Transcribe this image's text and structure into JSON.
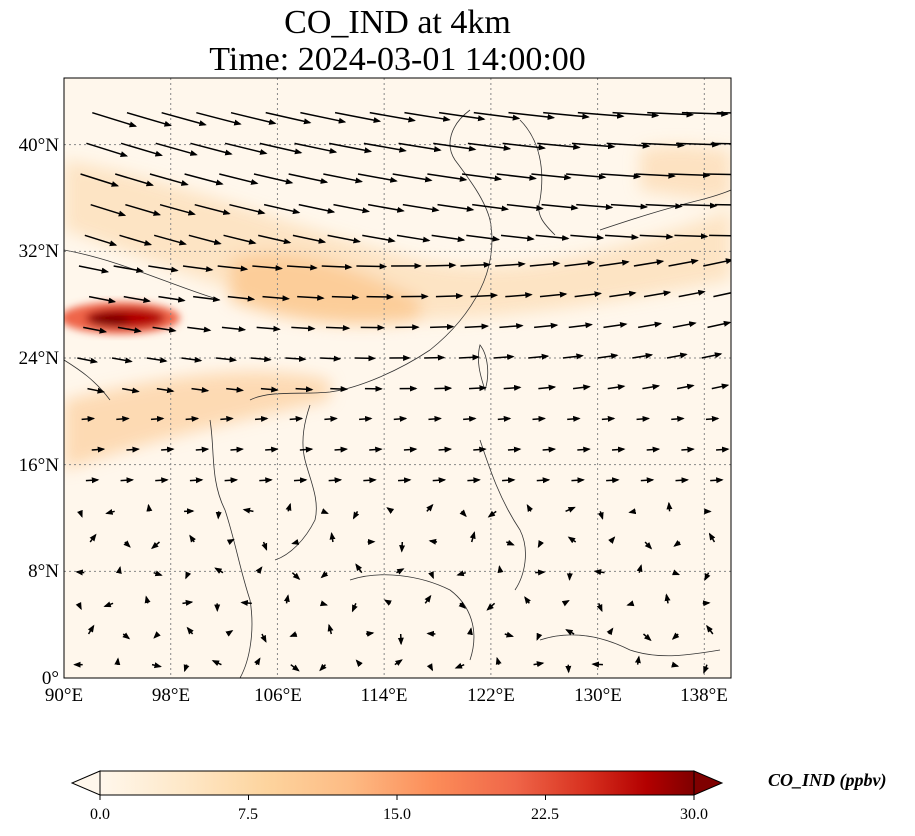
{
  "title_line1": "CO_IND at 4km",
  "title_line2": "Time: 2024-03-01 14:00:00",
  "map": {
    "lon_range": [
      90,
      140
    ],
    "lat_range": [
      0,
      45
    ],
    "lon_ticks": [
      "90°E",
      "98°E",
      "106°E",
      "114°E",
      "122°E",
      "130°E",
      "138°E"
    ],
    "lat_ticks": [
      "0°",
      "8°N",
      "16°N",
      "24°N",
      "32°N",
      "40°N"
    ],
    "lon_tick_values": [
      90,
      98,
      106,
      114,
      122,
      130,
      138
    ],
    "lat_tick_values": [
      0,
      8,
      16,
      24,
      32,
      40
    ],
    "gridlines": true,
    "coastlines": true,
    "colormap": "OrRd",
    "vectors": "wind arrows",
    "hotspot_region": "Eastern Himalaya / Assam (~27°N, 93°E)"
  },
  "colorbar": {
    "label": "CO_IND (ppbv)",
    "min": 0.0,
    "max": 30.0,
    "ticks": [
      "0.0",
      "7.5",
      "15.0",
      "22.5",
      "30.0"
    ],
    "extend": "both",
    "colors": [
      "#fff7ec",
      "#fee8c8",
      "#fdd49e",
      "#fdbb84",
      "#fc8d59",
      "#ef6548",
      "#d7301f",
      "#b30000",
      "#7f0000"
    ]
  }
}
